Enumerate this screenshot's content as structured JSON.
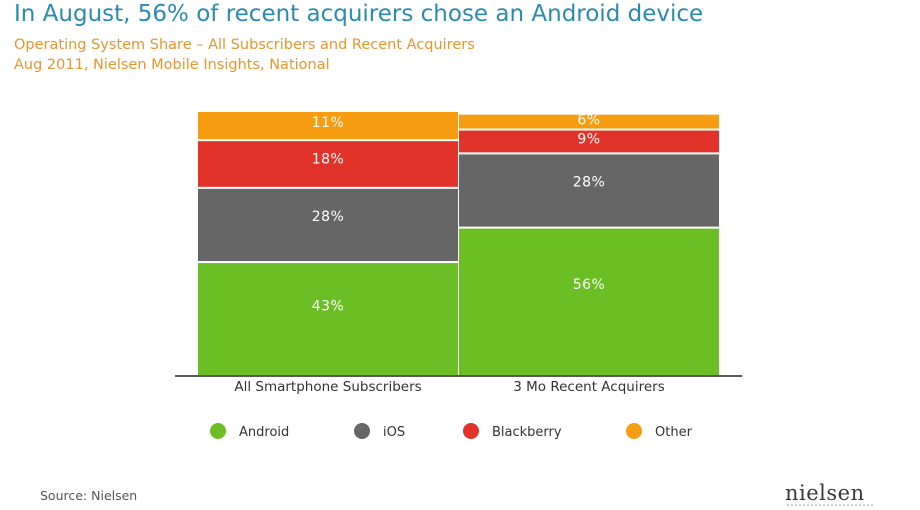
{
  "header": {
    "title": "In August, 56% of recent acquirers chose an Android device",
    "subtitle_1": "Operating System Share – All Subscribers and Recent Acquirers",
    "subtitle_2": "Aug 2011, Nielsen Mobile Insights, National"
  },
  "chart_data": {
    "type": "bar",
    "stacked": true,
    "categories": [
      "All Smartphone Subscribers",
      "3 Mo Recent Acquirers"
    ],
    "series": [
      {
        "name": "Android",
        "color": "#6bbf24",
        "values": [
          43,
          56
        ],
        "labels": [
          "43%",
          "56%"
        ]
      },
      {
        "name": "iOS",
        "color": "#666666",
        "values": [
          28,
          28
        ],
        "labels": [
          "28%",
          "28%"
        ]
      },
      {
        "name": "Blackberry",
        "color": "#e1332a",
        "values": [
          18,
          9
        ],
        "labels": [
          "18%",
          "9%"
        ]
      },
      {
        "name": "Other",
        "color": "#f59c10",
        "values": [
          11,
          6
        ],
        "labels": [
          "11%",
          "6%"
        ]
      }
    ],
    "ylim": [
      0,
      100
    ],
    "grid": false,
    "legend_position": "bottom"
  },
  "footer": {
    "source": "Source: Nielsen",
    "logo": "nielsen"
  }
}
